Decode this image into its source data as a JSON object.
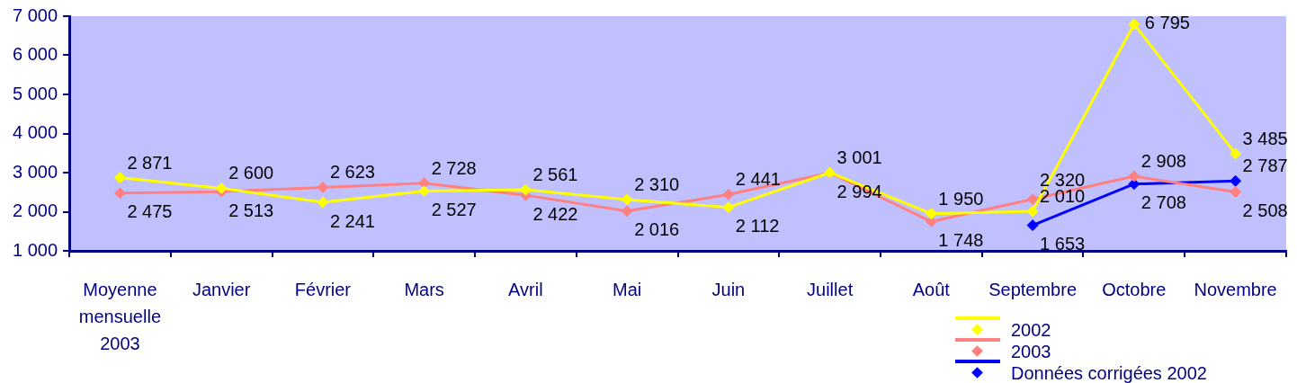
{
  "chart_data": {
    "type": "line",
    "categories": [
      "Moyenne mensuelle 2003",
      "Janvier",
      "Février",
      "Mars",
      "Avril",
      "Mai",
      "Juin",
      "Juillet",
      "Août",
      "Septembre",
      "Octobre",
      "Novembre"
    ],
    "series": [
      {
        "name": "2002",
        "color": "#ffff00",
        "values": [
          2871,
          2600,
          2241,
          2527,
          2561,
          2310,
          2112,
          3001,
          1950,
          2010,
          6795,
          3485
        ],
        "value_labels": [
          "2 871",
          "2 600",
          "2 241",
          "2 527",
          "2 561",
          "2 310",
          "2 112",
          "3 001",
          "1 950",
          "2 010",
          "6 795",
          "3 485"
        ]
      },
      {
        "name": "2003",
        "color": "#ff8080",
        "values": [
          2475,
          2513,
          2623,
          2728,
          2422,
          2016,
          2441,
          2994,
          1748,
          2320,
          2908,
          2508
        ],
        "value_labels": [
          "2 475",
          "2 513",
          "2 623",
          "2 728",
          "2 422",
          "2 016",
          "2 441",
          "2 994",
          "1 748",
          "2 320",
          "2 908",
          "2 508"
        ]
      },
      {
        "name": "Données corrigées 2002",
        "color": "#0000ff",
        "values": [
          null,
          null,
          null,
          null,
          null,
          null,
          null,
          null,
          null,
          1653,
          2708,
          2787
        ],
        "value_labels": [
          null,
          null,
          null,
          null,
          null,
          null,
          null,
          null,
          null,
          "1 653",
          "2 708",
          "2 787"
        ]
      }
    ],
    "ylim": [
      1000,
      7000
    ],
    "yticks": [
      {
        "value": 1000,
        "label": "1 000"
      },
      {
        "value": 2000,
        "label": "2 000"
      },
      {
        "value": 3000,
        "label": "3 000"
      },
      {
        "value": 4000,
        "label": "4 000"
      },
      {
        "value": 5000,
        "label": "5 000"
      },
      {
        "value": 6000,
        "label": "6 000"
      },
      {
        "value": 7000,
        "label": "7 000"
      }
    ],
    "legend": "bottom right",
    "marker": "diamond",
    "line_style": "solid"
  }
}
